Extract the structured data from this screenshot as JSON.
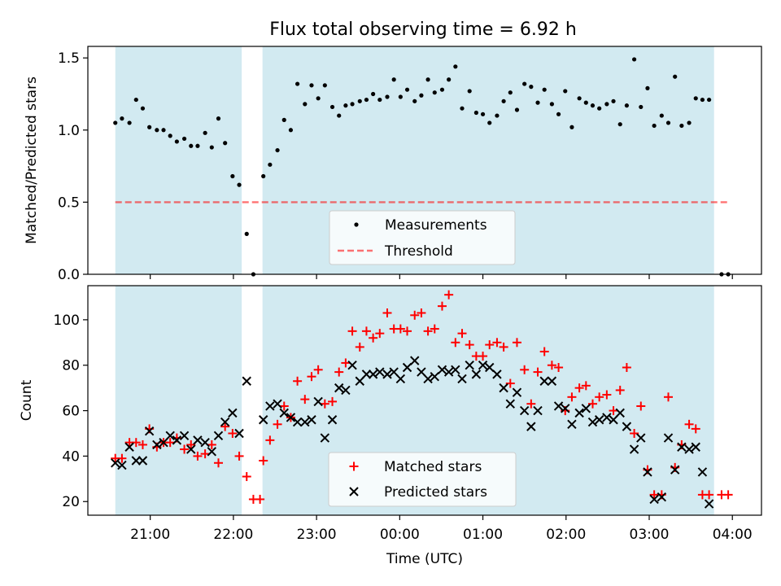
{
  "title": "Flux total observing time = 6.92 h",
  "colors": {
    "shade": "#add8e6",
    "measurement": "#000000",
    "threshold": "#ff0000",
    "matched": "#ff0000",
    "predicted": "#000000"
  },
  "chart_data": [
    {
      "type": "scatter",
      "name": "ratio-panel",
      "ylabel": "Matched/Predicted stars",
      "xlabel": "",
      "ylim": [
        0,
        1.58
      ],
      "xlim_hours": [
        20.25,
        28.35
      ],
      "yticks": [
        0.0,
        0.5,
        1.0,
        1.5
      ],
      "ytick_labels": [
        "0.0",
        "0.5",
        "1.0",
        "1.5"
      ],
      "threshold": 0.5,
      "threshold_range_hours": [
        20.58,
        27.95
      ],
      "shaded_intervals_hours": [
        [
          20.58,
          22.1
        ],
        [
          22.35,
          27.78
        ]
      ],
      "legend": {
        "position": "lower-center",
        "entries": [
          "Measurements",
          "Threshold"
        ]
      },
      "x_hours": [
        20.58,
        20.66,
        20.75,
        20.83,
        20.91,
        20.99,
        21.08,
        21.16,
        21.24,
        21.32,
        21.41,
        21.49,
        21.57,
        21.66,
        21.74,
        21.82,
        21.9,
        21.99,
        22.07,
        22.16,
        22.24,
        22.36,
        22.44,
        22.53,
        22.61,
        22.69,
        22.77,
        22.86,
        22.94,
        23.02,
        23.1,
        23.19,
        23.27,
        23.35,
        23.43,
        23.52,
        23.6,
        23.68,
        23.76,
        23.85,
        23.93,
        24.01,
        24.09,
        24.18,
        24.26,
        24.34,
        24.42,
        24.51,
        24.59,
        24.67,
        24.75,
        24.84,
        24.92,
        25.0,
        25.08,
        25.17,
        25.25,
        25.33,
        25.41,
        25.5,
        25.58,
        25.66,
        25.74,
        25.83,
        25.91,
        25.99,
        26.07,
        26.16,
        26.24,
        26.32,
        26.4,
        26.49,
        26.57,
        26.65,
        26.73,
        26.82,
        26.9,
        26.98,
        27.06,
        27.15,
        27.23,
        27.31,
        27.39,
        27.48,
        27.56,
        27.64,
        27.72,
        27.87,
        27.95
      ],
      "y_ratio": [
        1.05,
        1.08,
        1.05,
        1.21,
        1.15,
        1.02,
        1.0,
        1.0,
        0.96,
        0.92,
        0.94,
        0.89,
        0.89,
        0.98,
        0.88,
        1.08,
        0.91,
        0.68,
        0.62,
        0.28,
        0.0,
        0.68,
        0.76,
        0.86,
        1.07,
        1.0,
        1.32,
        1.18,
        1.31,
        1.22,
        1.31,
        1.16,
        1.1,
        1.17,
        1.18,
        1.2,
        1.21,
        1.25,
        1.21,
        1.23,
        1.35,
        1.23,
        1.28,
        1.2,
        1.24,
        1.35,
        1.26,
        1.28,
        1.35,
        1.44,
        1.15,
        1.27,
        1.12,
        1.11,
        1.05,
        1.1,
        1.2,
        1.26,
        1.14,
        1.32,
        1.3,
        1.19,
        1.28,
        1.18,
        1.11,
        1.27,
        1.02,
        1.22,
        1.19,
        1.17,
        1.15,
        1.18,
        1.2,
        1.04,
        1.17,
        1.49,
        1.16,
        1.29,
        1.03,
        1.1,
        1.05,
        1.37,
        1.03,
        1.05,
        1.22,
        1.21,
        1.21,
        0.0,
        0.0
      ]
    },
    {
      "type": "scatter",
      "name": "count-panel",
      "ylabel": "Count",
      "xlabel": "Time (UTC)",
      "ylim": [
        14,
        115
      ],
      "yticks": [
        20,
        40,
        60,
        80,
        100
      ],
      "ytick_labels": [
        "20",
        "40",
        "60",
        "80",
        "100"
      ],
      "xticks_hours": [
        21,
        22,
        23,
        24,
        25,
        26,
        27,
        28
      ],
      "xtick_labels": [
        "21:00",
        "22:00",
        "23:00",
        "00:00",
        "01:00",
        "02:00",
        "03:00",
        "04:00"
      ],
      "legend": {
        "position": "lower-center",
        "entries": [
          "Matched stars",
          "Predicted stars"
        ]
      },
      "series": [
        {
          "name": "Matched stars",
          "marker": "plus",
          "points": [
            [
              20.58,
              39
            ],
            [
              20.66,
              39
            ],
            [
              20.75,
              46
            ],
            [
              20.83,
              46
            ],
            [
              20.91,
              45
            ],
            [
              20.99,
              52
            ],
            [
              21.08,
              44
            ],
            [
              21.16,
              46
            ],
            [
              21.24,
              46
            ],
            [
              21.32,
              48
            ],
            [
              21.41,
              43
            ],
            [
              21.49,
              45
            ],
            [
              21.57,
              40
            ],
            [
              21.66,
              41
            ],
            [
              21.74,
              45
            ],
            [
              21.82,
              37
            ],
            [
              21.9,
              53
            ],
            [
              21.99,
              50
            ],
            [
              22.07,
              40
            ],
            [
              22.16,
              31
            ],
            [
              22.24,
              21
            ],
            [
              22.32,
              21
            ],
            [
              22.36,
              38
            ],
            [
              22.44,
              47
            ],
            [
              22.53,
              54
            ],
            [
              22.61,
              62
            ],
            [
              22.69,
              57
            ],
            [
              22.77,
              73
            ],
            [
              22.86,
              65
            ],
            [
              22.94,
              75
            ],
            [
              23.02,
              78
            ],
            [
              23.1,
              63
            ],
            [
              23.19,
              64
            ],
            [
              23.27,
              77
            ],
            [
              23.35,
              81
            ],
            [
              23.43,
              95
            ],
            [
              23.52,
              88
            ],
            [
              23.6,
              95
            ],
            [
              23.68,
              92
            ],
            [
              23.76,
              94
            ],
            [
              23.85,
              103
            ],
            [
              23.93,
              96
            ],
            [
              24.01,
              96
            ],
            [
              24.09,
              95
            ],
            [
              24.18,
              102
            ],
            [
              24.26,
              103
            ],
            [
              24.34,
              95
            ],
            [
              24.42,
              96
            ],
            [
              24.51,
              106
            ],
            [
              24.59,
              111
            ],
            [
              24.67,
              90
            ],
            [
              24.75,
              94
            ],
            [
              24.84,
              89
            ],
            [
              24.92,
              84
            ],
            [
              25.0,
              84
            ],
            [
              25.08,
              89
            ],
            [
              25.17,
              90
            ],
            [
              25.25,
              88
            ],
            [
              25.33,
              72
            ],
            [
              25.41,
              90
            ],
            [
              25.5,
              78
            ],
            [
              25.58,
              63
            ],
            [
              25.66,
              77
            ],
            [
              25.74,
              86
            ],
            [
              25.83,
              80
            ],
            [
              25.91,
              79
            ],
            [
              25.99,
              60
            ],
            [
              26.07,
              66
            ],
            [
              26.16,
              70
            ],
            [
              26.24,
              71
            ],
            [
              26.32,
              63
            ],
            [
              26.4,
              66
            ],
            [
              26.49,
              67
            ],
            [
              26.57,
              60
            ],
            [
              26.65,
              69
            ],
            [
              26.73,
              79
            ],
            [
              26.82,
              50
            ],
            [
              26.9,
              62
            ],
            [
              26.98,
              34
            ],
            [
              27.06,
              23
            ],
            [
              27.15,
              23
            ],
            [
              27.23,
              66
            ],
            [
              27.31,
              35
            ],
            [
              27.39,
              45
            ],
            [
              27.48,
              54
            ],
            [
              27.56,
              52
            ],
            [
              27.64,
              23
            ],
            [
              27.72,
              23
            ],
            [
              27.87,
              23
            ],
            [
              27.95,
              23
            ]
          ]
        },
        {
          "name": "Predicted stars",
          "marker": "x",
          "points": [
            [
              20.58,
              37
            ],
            [
              20.66,
              36
            ],
            [
              20.75,
              44
            ],
            [
              20.83,
              38
            ],
            [
              20.91,
              38
            ],
            [
              20.99,
              51
            ],
            [
              21.08,
              45
            ],
            [
              21.16,
              46
            ],
            [
              21.24,
              49
            ],
            [
              21.32,
              47
            ],
            [
              21.41,
              49
            ],
            [
              21.49,
              43
            ],
            [
              21.57,
              47
            ],
            [
              21.66,
              46
            ],
            [
              21.74,
              42
            ],
            [
              21.82,
              49
            ],
            [
              21.9,
              55
            ],
            [
              21.99,
              59
            ],
            [
              22.07,
              50
            ],
            [
              22.16,
              73
            ],
            [
              22.36,
              56
            ],
            [
              22.44,
              62
            ],
            [
              22.53,
              63
            ],
            [
              22.61,
              59
            ],
            [
              22.69,
              57
            ],
            [
              22.77,
              55
            ],
            [
              22.86,
              55
            ],
            [
              22.94,
              56
            ],
            [
              23.02,
              64
            ],
            [
              23.1,
              48
            ],
            [
              23.19,
              56
            ],
            [
              23.27,
              70
            ],
            [
              23.35,
              69
            ],
            [
              23.43,
              80
            ],
            [
              23.52,
              73
            ],
            [
              23.6,
              76
            ],
            [
              23.68,
              76
            ],
            [
              23.76,
              77
            ],
            [
              23.85,
              76
            ],
            [
              23.93,
              77
            ],
            [
              24.01,
              74
            ],
            [
              24.09,
              79
            ],
            [
              24.18,
              82
            ],
            [
              24.26,
              77
            ],
            [
              24.34,
              74
            ],
            [
              24.42,
              75
            ],
            [
              24.51,
              78
            ],
            [
              24.59,
              77
            ],
            [
              24.67,
              78
            ],
            [
              24.75,
              74
            ],
            [
              24.84,
              80
            ],
            [
              24.92,
              76
            ],
            [
              25.0,
              80
            ],
            [
              25.08,
              79
            ],
            [
              25.17,
              76
            ],
            [
              25.25,
              70
            ],
            [
              25.33,
              63
            ],
            [
              25.41,
              68
            ],
            [
              25.5,
              60
            ],
            [
              25.58,
              53
            ],
            [
              25.66,
              60
            ],
            [
              25.74,
              73
            ],
            [
              25.83,
              73
            ],
            [
              25.91,
              62
            ],
            [
              25.99,
              61
            ],
            [
              26.07,
              54
            ],
            [
              26.16,
              59
            ],
            [
              26.24,
              61
            ],
            [
              26.32,
              55
            ],
            [
              26.4,
              56
            ],
            [
              26.49,
              57
            ],
            [
              26.57,
              56
            ],
            [
              26.65,
              59
            ],
            [
              26.73,
              53
            ],
            [
              26.82,
              43
            ],
            [
              26.9,
              48
            ],
            [
              26.98,
              33
            ],
            [
              27.06,
              21
            ],
            [
              27.15,
              22
            ],
            [
              27.23,
              48
            ],
            [
              27.31,
              34
            ],
            [
              27.39,
              44
            ],
            [
              27.48,
              43
            ],
            [
              27.56,
              44
            ],
            [
              27.64,
              33
            ],
            [
              27.72,
              19
            ]
          ]
        }
      ]
    }
  ]
}
